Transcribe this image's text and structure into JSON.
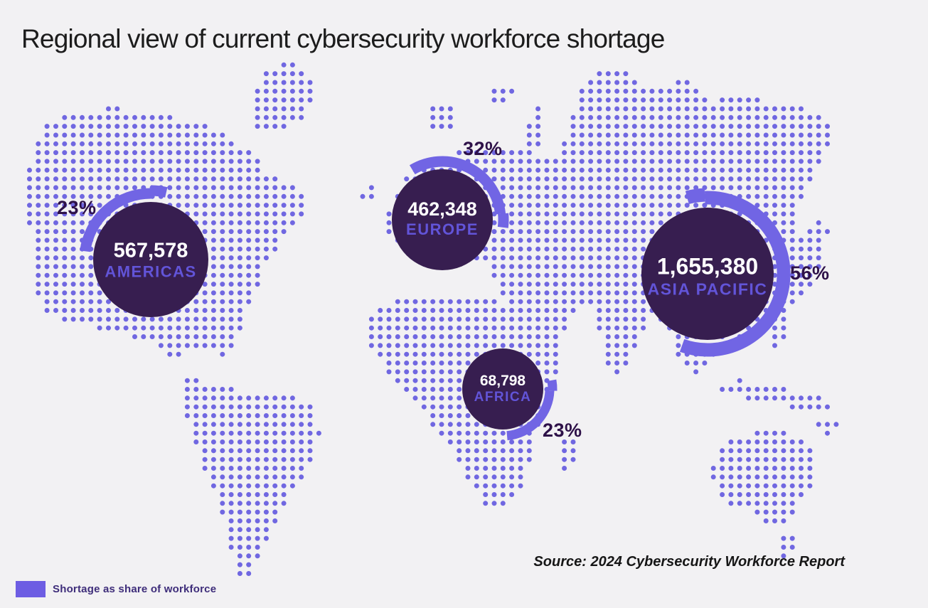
{
  "title": "Regional view of current cybersecurity workforce shortage",
  "source": "Source: 2024 Cybersecurity Workforce Report",
  "legend": {
    "label": "Shortage as share of workforce",
    "swatch_color": "#6d5de3"
  },
  "colors": {
    "background": "#f2f1f3",
    "map_dot": "#7067e1",
    "bubble_fill": "#371e50",
    "arc": "#7165e4",
    "value_text": "#ffffff",
    "region_text": "#6254d8",
    "percent_text": "#2e1148",
    "title_text": "#1c1c1c",
    "source_text": "#161616",
    "legend_text": "#3e2d7a"
  },
  "chart_data": {
    "type": "bubble",
    "title": "Regional view of current cybersecurity workforce shortage",
    "legend": "Shortage as share of workforce",
    "source": "Source: 2024 Cybersecurity Workforce Report",
    "regions": [
      {
        "name": "AMERICAS",
        "value": 567578,
        "value_label": "567,578",
        "share_pct": 23,
        "pct_label": "23%"
      },
      {
        "name": "EUROPE",
        "value": 462348,
        "value_label": "462,348",
        "share_pct": 32,
        "pct_label": "32%"
      },
      {
        "name": "ASIA PACIFIC",
        "value": 1655380,
        "value_label": "1,655,380",
        "share_pct": 56,
        "pct_label": "56%"
      },
      {
        "name": "AFRICA",
        "value": 68798,
        "value_label": "68,798",
        "share_pct": 23,
        "pct_label": "23%"
      }
    ]
  }
}
